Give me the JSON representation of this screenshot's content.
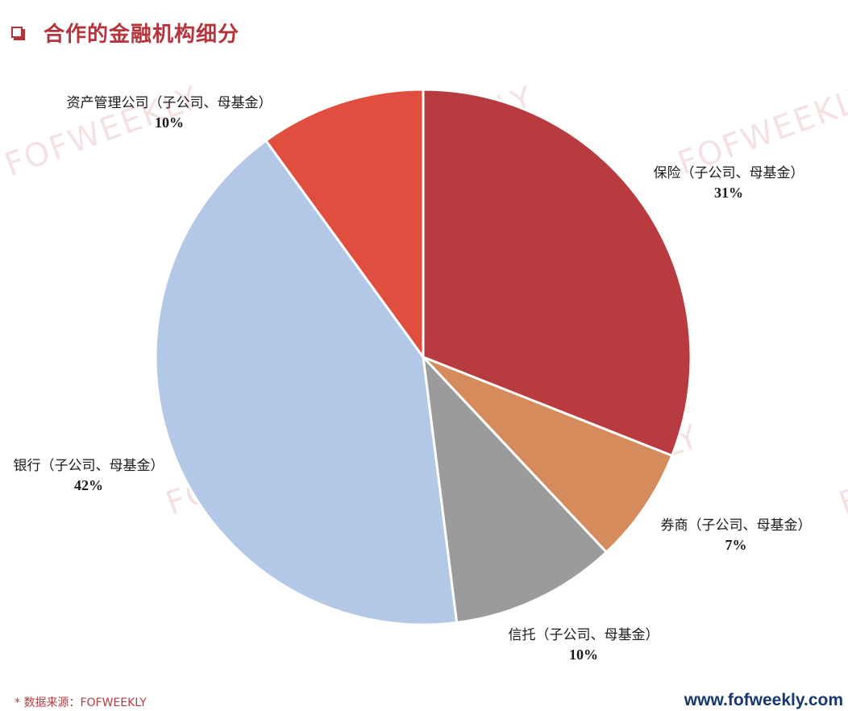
{
  "header": {
    "title": "合作的金融机构细分"
  },
  "watermark_text": "FOFWEEKLY",
  "chart_data": {
    "type": "pie",
    "start_angle_deg": 0,
    "direction": "clockwise",
    "slices": [
      {
        "label": "保险（子公司、母基金）",
        "pct_label": "31%",
        "value": 31,
        "color": "#b83b3f"
      },
      {
        "label": "券商（子公司、母基金）",
        "pct_label": "7%",
        "value": 7,
        "color": "#d58b5b"
      },
      {
        "label": "信托（子公司、母基金）",
        "pct_label": "10%",
        "value": 10,
        "color": "#9b9b9b"
      },
      {
        "label": "银行（子公司、母基金）",
        "pct_label": "42%",
        "value": 42,
        "color": "#b3c7e6"
      },
      {
        "label": "资产管理公司（子公司、母基金）",
        "pct_label": "10%",
        "value": 10,
        "color": "#e04e40"
      }
    ]
  },
  "footer": {
    "source": "*  数据来源：FOFWEEKLY",
    "url": "www.fofweekly.com"
  }
}
